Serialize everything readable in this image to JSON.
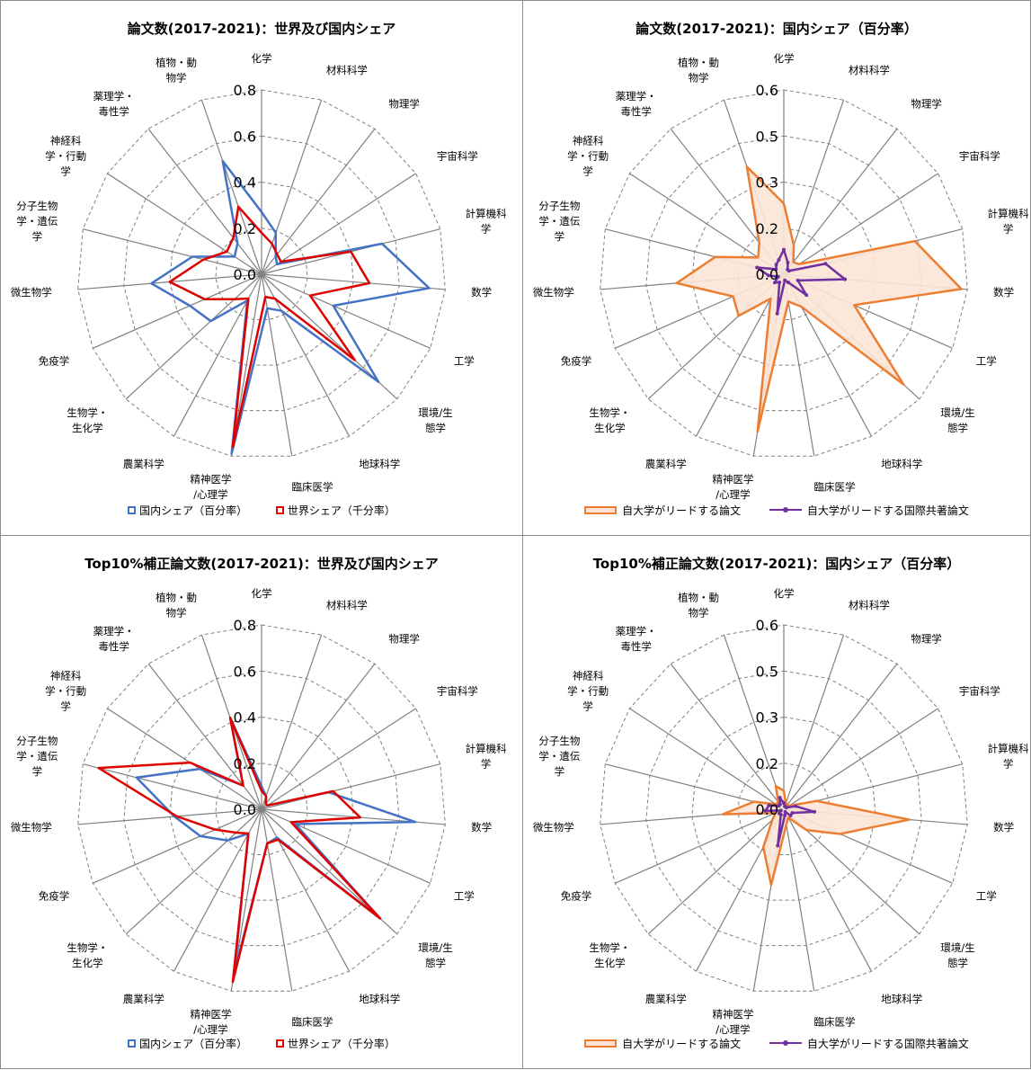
{
  "categories": [
    "化学",
    "材料科学",
    "物理学",
    "宇宙科学",
    "計算機科学",
    "数学",
    "工学",
    "環境/生態学",
    "地球科学",
    "臨床医学",
    "精神医学/心理学",
    "農業科学",
    "生物学・生化学",
    "免疫学",
    "微生物学",
    "分子生物学・遺伝学",
    "神経科学・行動学",
    "薬理学・毒性学",
    "植物・動物学"
  ],
  "category_labels": [
    [
      "化学"
    ],
    [
      "材料科学"
    ],
    [
      "物理学"
    ],
    [
      "宇宙科学"
    ],
    [
      "計算機科",
      "学"
    ],
    [
      "数学"
    ],
    [
      "工学"
    ],
    [
      "環境/生",
      "態学"
    ],
    [
      "地球科学"
    ],
    [
      "臨床医学"
    ],
    [
      "精神医学",
      "/心理学"
    ],
    [
      "農業科学"
    ],
    [
      "生物学・",
      "生化学"
    ],
    [
      "免疫学"
    ],
    [
      "微生物学"
    ],
    [
      "分子生物",
      "学・遺伝",
      "学"
    ],
    [
      "神経科",
      "学・行動",
      "学"
    ],
    [
      "薬理学・",
      "毒性学"
    ],
    [
      "植物・動",
      "物学"
    ]
  ],
  "colors": {
    "domestic": "#4472c4",
    "world": "#e00000",
    "lead_area_fill": "#fbe5d6",
    "lead_area_stroke": "#ed7d31",
    "intl_line": "#7030a0",
    "grid": "#808080",
    "border": "#8c8c8c"
  },
  "chart_data": [
    {
      "type": "radar",
      "title": "論文数(2017-2021)：世界及び国内シェア",
      "rlim": [
        0,
        0.8
      ],
      "ticks": [
        "0.0",
        "0.2",
        "0.4",
        "0.6",
        "0.8"
      ],
      "tick_values": [
        0,
        0.2,
        0.4,
        0.6,
        0.8
      ],
      "series": [
        {
          "name": "国内シェア（百分率）",
          "style": "line",
          "color": "#4472c4",
          "values": [
            0.27,
            0.19,
            0.1,
            0.08,
            0.54,
            0.73,
            0.34,
            0.69,
            0.18,
            0.15,
            0.79,
            0.13,
            0.3,
            0.34,
            0.48,
            0.31,
            0.14,
            0.17,
            0.52
          ]
        },
        {
          "name": "世界シェア（千分率）",
          "style": "line",
          "color": "#e00000",
          "values": [
            0.18,
            0.14,
            0.11,
            0.1,
            0.4,
            0.47,
            0.23,
            0.55,
            0.12,
            0.1,
            0.76,
            0.12,
            0.16,
            0.27,
            0.4,
            0.26,
            0.18,
            0.2,
            0.31
          ]
        }
      ],
      "legend": [
        "国内シェア（百分率）",
        "世界シェア（千分率）"
      ]
    },
    {
      "type": "radar",
      "title": "論文数(2017-2021)：国内シェア（百分率）",
      "rlim": [
        0,
        0.6
      ],
      "ticks": [
        "0.0",
        "0.2",
        "0.3",
        "0.5",
        "0.6"
      ],
      "tick_values": [
        0,
        0.15,
        0.3,
        0.45,
        0.6
      ],
      "series": [
        {
          "name": "自大学がリードする論文",
          "style": "area",
          "color": "#ed7d31",
          "values": [
            0.23,
            0.1,
            0.05,
            0.06,
            0.44,
            0.58,
            0.25,
            0.53,
            0.12,
            0.09,
            0.52,
            0.09,
            0.2,
            0.18,
            0.35,
            0.23,
            0.1,
            0.13,
            0.37
          ]
        },
        {
          "name": "自大学がリードする国際共著論文",
          "style": "line",
          "color": "#7030a0",
          "values": [
            0.08,
            0.04,
            0.02,
            0.02,
            0.14,
            0.2,
            0.05,
            0.1,
            0.03,
            0.02,
            0.13,
            0.03,
            0.04,
            0.02,
            0.05,
            0.09,
            0.03,
            0.04,
            0.05
          ]
        }
      ],
      "legend": [
        "自大学がリードする論文",
        "自大学がリードする国際共著論文"
      ]
    },
    {
      "type": "radar",
      "title": "Top10%補正論文数(2017-2021)：世界及び国内シェア",
      "rlim": [
        0,
        0.8
      ],
      "ticks": [
        "0.0",
        "0.2",
        "0.4",
        "0.6",
        "0.8"
      ],
      "tick_values": [
        0,
        0.2,
        0.4,
        0.6,
        0.8
      ],
      "series": [
        {
          "name": "国内シェア（百分率）",
          "style": "line",
          "color": "#4472c4",
          "values": [
            0.1,
            0.06,
            0.03,
            0.03,
            0.3,
            0.67,
            0.16,
            0.7,
            0.14,
            0.15,
            0.72,
            0.12,
            0.2,
            0.29,
            0.38,
            0.56,
            0.32,
            0.13,
            0.42
          ]
        },
        {
          "name": "世界シェア（千分率）",
          "style": "line",
          "color": "#e00000",
          "values": [
            0.08,
            0.06,
            0.03,
            0.03,
            0.32,
            0.43,
            0.14,
            0.7,
            0.15,
            0.15,
            0.76,
            0.12,
            0.15,
            0.22,
            0.37,
            0.73,
            0.37,
            0.13,
            0.42
          ]
        }
      ],
      "legend": [
        "国内シェア（百分率）",
        "世界シェア（千分率）"
      ]
    },
    {
      "type": "radar",
      "title": "Top10%補正論文数(2017-2021)：国内シェア（百分率）",
      "rlim": [
        0,
        0.6
      ],
      "ticks": [
        "0.0",
        "0.2",
        "0.3",
        "0.5",
        "0.6"
      ],
      "tick_values": [
        0,
        0.15,
        0.3,
        0.45,
        0.6
      ],
      "series": [
        {
          "name": "自大学がリードする論文",
          "style": "area",
          "color": "#ed7d31",
          "values": [
            0.06,
            0.02,
            0.02,
            0.02,
            0.11,
            0.41,
            0.2,
            0.1,
            0.03,
            0.05,
            0.25,
            0.14,
            0.05,
            0.03,
            0.2,
            0.1,
            0.03,
            0.03,
            0.08
          ]
        },
        {
          "name": "自大学がリードする国際共著論文",
          "style": "line",
          "color": "#7030a0",
          "values": [
            0.02,
            0.01,
            0.01,
            0.01,
            0.04,
            0.1,
            0.03,
            0.03,
            0.01,
            0.02,
            0.12,
            0.02,
            0.02,
            0.01,
            0.06,
            0.05,
            0.02,
            0.02,
            0.04
          ]
        }
      ],
      "legend": [
        "自大学がリードする論文",
        "自大学がリードする国際共著論文"
      ]
    }
  ]
}
